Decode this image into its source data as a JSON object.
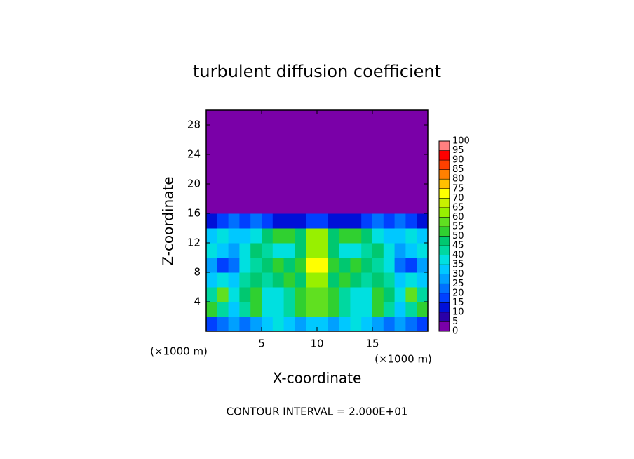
{
  "chart_data": {
    "type": "heatmap",
    "title": "turbulent diffusion coefficient",
    "xlabel": "X-coordinate",
    "ylabel": "Z-coordinate",
    "x_unit": "(×1000 m)",
    "y_unit": "(×1000 m)",
    "footer": "CONTOUR INTERVAL = 2.000E+01",
    "xlim": [
      0,
      20
    ],
    "ylim": [
      0,
      30
    ],
    "xticks": [
      5,
      10,
      15
    ],
    "yticks": [
      4,
      8,
      12,
      16,
      20,
      24,
      28
    ],
    "x": [
      0.5,
      1.5,
      2.5,
      3.5,
      4.5,
      5.5,
      6.5,
      7.5,
      8.5,
      9.5,
      10.5,
      11.5,
      12.5,
      13.5,
      14.5,
      15.5,
      16.5,
      17.5,
      18.5,
      19.5
    ],
    "y": [
      1,
      3,
      5,
      7,
      9,
      11,
      13,
      15,
      17,
      19,
      21,
      23,
      25,
      27,
      29
    ],
    "z": [
      [
        15,
        20,
        25,
        20,
        25,
        30,
        35,
        30,
        25,
        30,
        30,
        25,
        30,
        35,
        30,
        25,
        20,
        25,
        20,
        15
      ],
      [
        50,
        40,
        30,
        40,
        50,
        35,
        35,
        40,
        50,
        55,
        55,
        50,
        40,
        35,
        35,
        50,
        40,
        30,
        40,
        50
      ],
      [
        40,
        55,
        35,
        45,
        50,
        35,
        35,
        40,
        50,
        55,
        55,
        50,
        40,
        35,
        35,
        50,
        45,
        35,
        55,
        40
      ],
      [
        30,
        35,
        30,
        40,
        45,
        40,
        45,
        50,
        45,
        60,
        60,
        45,
        50,
        45,
        40,
        45,
        40,
        30,
        35,
        30
      ],
      [
        25,
        15,
        20,
        35,
        40,
        45,
        50,
        45,
        50,
        70,
        70,
        50,
        45,
        50,
        45,
        40,
        35,
        20,
        15,
        25
      ],
      [
        35,
        30,
        25,
        35,
        45,
        40,
        35,
        35,
        45,
        60,
        60,
        45,
        35,
        35,
        40,
        45,
        35,
        25,
        30,
        35
      ],
      [
        30,
        35,
        30,
        30,
        35,
        45,
        50,
        50,
        45,
        60,
        60,
        45,
        50,
        50,
        45,
        35,
        30,
        30,
        35,
        30
      ],
      [
        10,
        15,
        20,
        15,
        20,
        15,
        10,
        10,
        10,
        15,
        15,
        10,
        10,
        10,
        15,
        20,
        15,
        20,
        15,
        10
      ],
      [
        0,
        0,
        0,
        0,
        0,
        0,
        0,
        0,
        0,
        0,
        0,
        0,
        0,
        0,
        0,
        0,
        0,
        0,
        0,
        0
      ],
      [
        0,
        0,
        0,
        0,
        0,
        0,
        0,
        0,
        0,
        0,
        0,
        0,
        0,
        0,
        0,
        0,
        0,
        0,
        0,
        0
      ],
      [
        0,
        0,
        0,
        0,
        0,
        0,
        0,
        0,
        0,
        0,
        0,
        0,
        0,
        0,
        0,
        0,
        0,
        0,
        0,
        0
      ],
      [
        0,
        0,
        0,
        0,
        0,
        0,
        0,
        0,
        0,
        0,
        0,
        0,
        0,
        0,
        0,
        0,
        0,
        0,
        0,
        0
      ],
      [
        0,
        0,
        0,
        0,
        0,
        0,
        0,
        0,
        0,
        0,
        0,
        0,
        0,
        0,
        0,
        0,
        0,
        0,
        0,
        0
      ],
      [
        0,
        0,
        0,
        0,
        0,
        0,
        0,
        0,
        0,
        0,
        0,
        0,
        0,
        0,
        0,
        0,
        0,
        0,
        0,
        0
      ],
      [
        0,
        0,
        0,
        0,
        0,
        0,
        0,
        0,
        0,
        0,
        0,
        0,
        0,
        0,
        0,
        0,
        0,
        0,
        0,
        0
      ]
    ],
    "colorbar_ticks": [
      0,
      5,
      10,
      15,
      20,
      25,
      30,
      35,
      40,
      45,
      50,
      55,
      60,
      65,
      70,
      75,
      80,
      85,
      90,
      95,
      100
    ],
    "colors": [
      "#7a00a8",
      "#2a00a8",
      "#0010d8",
      "#0040ff",
      "#0070ff",
      "#00a0ff",
      "#00c8ff",
      "#00e0e0",
      "#00d8a0",
      "#00c870",
      "#30d030",
      "#60e020",
      "#98f000",
      "#c8f000",
      "#ffff00",
      "#ffc000",
      "#ff8000",
      "#ff4000",
      "#ff0000",
      "#ff8080"
    ]
  }
}
